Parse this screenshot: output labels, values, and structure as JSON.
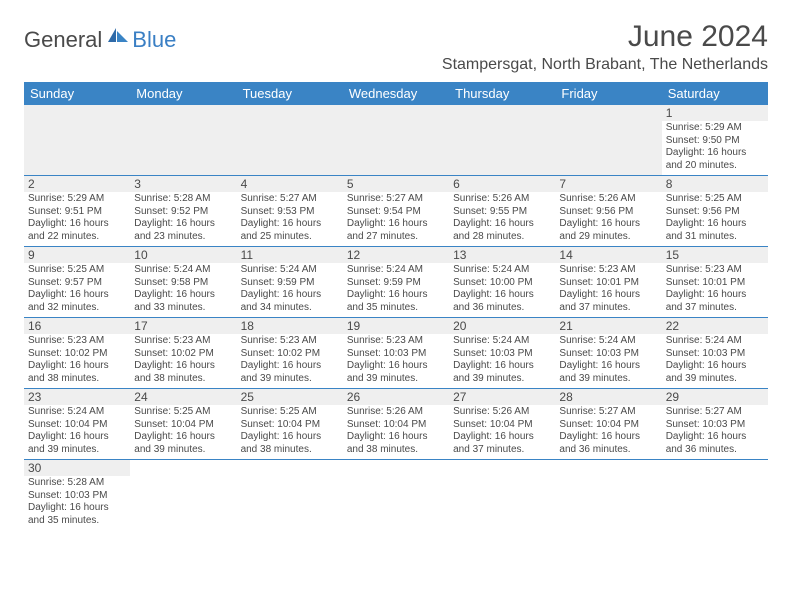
{
  "logo": {
    "part1": "General",
    "part2": "Blue"
  },
  "title": "June 2024",
  "location": "Stampersgat, North Brabant, The Netherlands",
  "colors": {
    "header_bg": "#3a84c5",
    "header_text": "#ffffff",
    "text": "#4a4a4a",
    "logo_blue": "#3a7fc4",
    "daybar_bg": "#efefef",
    "border": "#3a84c5"
  },
  "day_headers": [
    "Sunday",
    "Monday",
    "Tuesday",
    "Wednesday",
    "Thursday",
    "Friday",
    "Saturday"
  ],
  "weeks": [
    [
      null,
      null,
      null,
      null,
      null,
      null,
      {
        "n": "1",
        "sunrise": "5:29 AM",
        "sunset": "9:50 PM",
        "daylight": "16 hours and 20 minutes."
      }
    ],
    [
      {
        "n": "2",
        "sunrise": "5:29 AM",
        "sunset": "9:51 PM",
        "daylight": "16 hours and 22 minutes."
      },
      {
        "n": "3",
        "sunrise": "5:28 AM",
        "sunset": "9:52 PM",
        "daylight": "16 hours and 23 minutes."
      },
      {
        "n": "4",
        "sunrise": "5:27 AM",
        "sunset": "9:53 PM",
        "daylight": "16 hours and 25 minutes."
      },
      {
        "n": "5",
        "sunrise": "5:27 AM",
        "sunset": "9:54 PM",
        "daylight": "16 hours and 27 minutes."
      },
      {
        "n": "6",
        "sunrise": "5:26 AM",
        "sunset": "9:55 PM",
        "daylight": "16 hours and 28 minutes."
      },
      {
        "n": "7",
        "sunrise": "5:26 AM",
        "sunset": "9:56 PM",
        "daylight": "16 hours and 29 minutes."
      },
      {
        "n": "8",
        "sunrise": "5:25 AM",
        "sunset": "9:56 PM",
        "daylight": "16 hours and 31 minutes."
      }
    ],
    [
      {
        "n": "9",
        "sunrise": "5:25 AM",
        "sunset": "9:57 PM",
        "daylight": "16 hours and 32 minutes."
      },
      {
        "n": "10",
        "sunrise": "5:24 AM",
        "sunset": "9:58 PM",
        "daylight": "16 hours and 33 minutes."
      },
      {
        "n": "11",
        "sunrise": "5:24 AM",
        "sunset": "9:59 PM",
        "daylight": "16 hours and 34 minutes."
      },
      {
        "n": "12",
        "sunrise": "5:24 AM",
        "sunset": "9:59 PM",
        "daylight": "16 hours and 35 minutes."
      },
      {
        "n": "13",
        "sunrise": "5:24 AM",
        "sunset": "10:00 PM",
        "daylight": "16 hours and 36 minutes."
      },
      {
        "n": "14",
        "sunrise": "5:23 AM",
        "sunset": "10:01 PM",
        "daylight": "16 hours and 37 minutes."
      },
      {
        "n": "15",
        "sunrise": "5:23 AM",
        "sunset": "10:01 PM",
        "daylight": "16 hours and 37 minutes."
      }
    ],
    [
      {
        "n": "16",
        "sunrise": "5:23 AM",
        "sunset": "10:02 PM",
        "daylight": "16 hours and 38 minutes."
      },
      {
        "n": "17",
        "sunrise": "5:23 AM",
        "sunset": "10:02 PM",
        "daylight": "16 hours and 38 minutes."
      },
      {
        "n": "18",
        "sunrise": "5:23 AM",
        "sunset": "10:02 PM",
        "daylight": "16 hours and 39 minutes."
      },
      {
        "n": "19",
        "sunrise": "5:23 AM",
        "sunset": "10:03 PM",
        "daylight": "16 hours and 39 minutes."
      },
      {
        "n": "20",
        "sunrise": "5:24 AM",
        "sunset": "10:03 PM",
        "daylight": "16 hours and 39 minutes."
      },
      {
        "n": "21",
        "sunrise": "5:24 AM",
        "sunset": "10:03 PM",
        "daylight": "16 hours and 39 minutes."
      },
      {
        "n": "22",
        "sunrise": "5:24 AM",
        "sunset": "10:03 PM",
        "daylight": "16 hours and 39 minutes."
      }
    ],
    [
      {
        "n": "23",
        "sunrise": "5:24 AM",
        "sunset": "10:04 PM",
        "daylight": "16 hours and 39 minutes."
      },
      {
        "n": "24",
        "sunrise": "5:25 AM",
        "sunset": "10:04 PM",
        "daylight": "16 hours and 39 minutes."
      },
      {
        "n": "25",
        "sunrise": "5:25 AM",
        "sunset": "10:04 PM",
        "daylight": "16 hours and 38 minutes."
      },
      {
        "n": "26",
        "sunrise": "5:26 AM",
        "sunset": "10:04 PM",
        "daylight": "16 hours and 38 minutes."
      },
      {
        "n": "27",
        "sunrise": "5:26 AM",
        "sunset": "10:04 PM",
        "daylight": "16 hours and 37 minutes."
      },
      {
        "n": "28",
        "sunrise": "5:27 AM",
        "sunset": "10:04 PM",
        "daylight": "16 hours and 36 minutes."
      },
      {
        "n": "29",
        "sunrise": "5:27 AM",
        "sunset": "10:03 PM",
        "daylight": "16 hours and 36 minutes."
      }
    ],
    [
      {
        "n": "30",
        "sunrise": "5:28 AM",
        "sunset": "10:03 PM",
        "daylight": "16 hours and 35 minutes."
      },
      null,
      null,
      null,
      null,
      null,
      null
    ]
  ],
  "labels": {
    "sunrise": "Sunrise: ",
    "sunset": "Sunset: ",
    "daylight": "Daylight: "
  }
}
